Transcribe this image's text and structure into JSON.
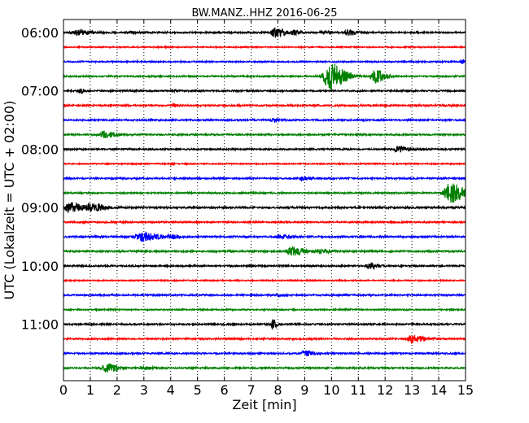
{
  "chart_data": {
    "type": "line",
    "title": "BW.MANZ..HHZ 2016-06-25",
    "xlabel": "Zeit  [min]",
    "ylabel": "UTC (Lokalzeit = UTC + 02:00)",
    "xlim": [
      0,
      15
    ],
    "x_ticks": [
      "0",
      "1",
      "2",
      "3",
      "4",
      "5",
      "6",
      "7",
      "8",
      "9",
      "10",
      "11",
      "12",
      "13",
      "14",
      "15"
    ],
    "y_tick_labels": [
      "06:00",
      "07:00",
      "08:00",
      "09:00",
      "10:00",
      "11:00"
    ],
    "trace_interval_minutes": 15,
    "grid": "vertical dotted",
    "trace_colors": [
      "#000000",
      "#ff0000",
      "#0000ff",
      "#008000"
    ],
    "traces": [
      {
        "start": "06:00",
        "noise": 0.9,
        "events": [
          [
            0.5,
            2.5,
            0.5
          ],
          [
            2.5,
            0.8,
            0.3
          ],
          [
            7.9,
            5.5,
            0.35
          ],
          [
            8.6,
            2,
            0.2
          ],
          [
            9.7,
            1.5,
            0.25
          ],
          [
            10.6,
            3,
            0.25
          ]
        ]
      },
      {
        "start": "06:15",
        "noise": 0.7,
        "events": []
      },
      {
        "start": "06:30",
        "noise": 0.8,
        "events": [
          [
            14.85,
            3,
            0.1
          ]
        ]
      },
      {
        "start": "06:45",
        "noise": 0.9,
        "events": [
          [
            9.9,
            17,
            0.45
          ],
          [
            11.6,
            8,
            0.3
          ]
        ]
      },
      {
        "start": "07:00",
        "noise": 0.9,
        "events": [
          [
            0.6,
            2.5,
            0.15
          ],
          [
            4.1,
            1.5,
            0.1
          ]
        ]
      },
      {
        "start": "07:15",
        "noise": 0.9,
        "events": [
          [
            4.1,
            1.5,
            0.1
          ]
        ]
      },
      {
        "start": "07:30",
        "noise": 0.9,
        "events": [
          [
            7.8,
            2,
            0.2
          ]
        ]
      },
      {
        "start": "07:45",
        "noise": 0.9,
        "events": [
          [
            1.5,
            4,
            0.35
          ]
        ]
      },
      {
        "start": "08:00",
        "noise": 0.9,
        "events": [
          [
            12.5,
            3.5,
            0.35
          ]
        ]
      },
      {
        "start": "08:15",
        "noise": 0.7,
        "events": [
          [
            4.0,
            1,
            0.1
          ]
        ]
      },
      {
        "start": "08:30",
        "noise": 0.9,
        "events": [
          [
            8.9,
            3,
            0.2
          ]
        ]
      },
      {
        "start": "08:45",
        "noise": 0.9,
        "events": [
          [
            14.4,
            12,
            0.45
          ]
        ]
      },
      {
        "start": "09:00",
        "noise": 1.1,
        "events": [
          [
            0.2,
            6,
            0.35
          ],
          [
            1.0,
            5,
            0.35
          ]
        ]
      },
      {
        "start": "09:15",
        "noise": 0.9,
        "events": []
      },
      {
        "start": "09:30",
        "noise": 1.0,
        "events": [
          [
            2.9,
            5,
            0.5
          ],
          [
            4.0,
            2,
            0.3
          ],
          [
            8.1,
            2,
            0.3
          ]
        ]
      },
      {
        "start": "09:45",
        "noise": 1.0,
        "events": [
          [
            8.5,
            5,
            0.35
          ],
          [
            9.5,
            2,
            0.4
          ]
        ]
      },
      {
        "start": "10:00",
        "noise": 0.9,
        "events": [
          [
            11.4,
            3,
            0.25
          ]
        ]
      },
      {
        "start": "10:15",
        "noise": 0.7,
        "events": []
      },
      {
        "start": "10:30",
        "noise": 0.9,
        "events": [
          [
            8.0,
            1.5,
            0.15
          ]
        ]
      },
      {
        "start": "10:45",
        "noise": 0.8,
        "events": [
          [
            10.5,
            1.2,
            0.1
          ]
        ]
      },
      {
        "start": "11:00",
        "noise": 0.9,
        "events": [
          [
            7.8,
            6,
            0.12
          ]
        ]
      },
      {
        "start": "11:15",
        "noise": 0.9,
        "events": [
          [
            13.0,
            5,
            0.35
          ]
        ]
      },
      {
        "start": "11:30",
        "noise": 0.9,
        "events": [
          [
            9.0,
            3,
            0.25
          ]
        ]
      },
      {
        "start": "11:45",
        "noise": 0.9,
        "events": [
          [
            1.6,
            5,
            0.35
          ],
          [
            3.0,
            1.5,
            0.3
          ]
        ]
      }
    ]
  }
}
